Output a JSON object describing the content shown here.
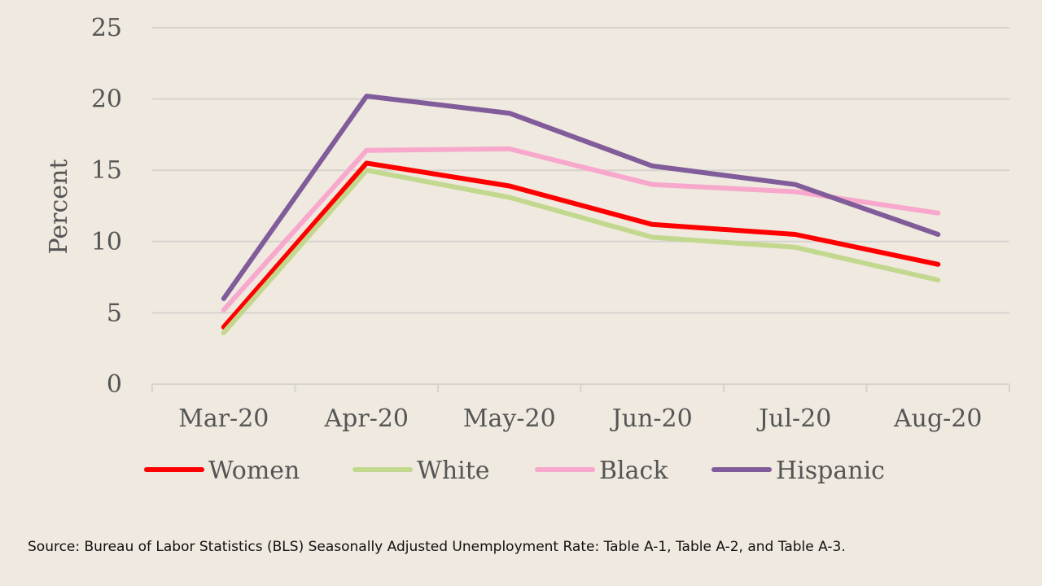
{
  "chart_data": {
    "type": "line",
    "categories": [
      "Mar-20",
      "Apr-20",
      "May-20",
      "Jun-20",
      "Jul-20",
      "Aug-20"
    ],
    "ylabel": "Percent",
    "ylim": [
      0,
      25
    ],
    "yticks": [
      0,
      5,
      10,
      15,
      20,
      25
    ],
    "grid": true,
    "legend_position": "bottom",
    "series": [
      {
        "name": "Women",
        "color": "#ff0000",
        "values": [
          4.0,
          15.5,
          13.9,
          11.2,
          10.5,
          8.4
        ]
      },
      {
        "name": "White",
        "color": "#c3d88f",
        "values": [
          3.6,
          15.0,
          13.1,
          10.3,
          9.6,
          7.3
        ]
      },
      {
        "name": "Black",
        "color": "#f7a8cc",
        "values": [
          5.2,
          16.4,
          16.5,
          14.0,
          13.5,
          12.0
        ]
      },
      {
        "name": "Hispanic",
        "color": "#815c9a",
        "values": [
          6.0,
          20.2,
          19.0,
          15.3,
          14.0,
          10.5
        ]
      }
    ]
  },
  "source_note": "Source: Bureau of Labor Statistics (BLS) Seasonally Adjusted Unemployment Rate: Table A-1, Table A-2, and Table A-3."
}
